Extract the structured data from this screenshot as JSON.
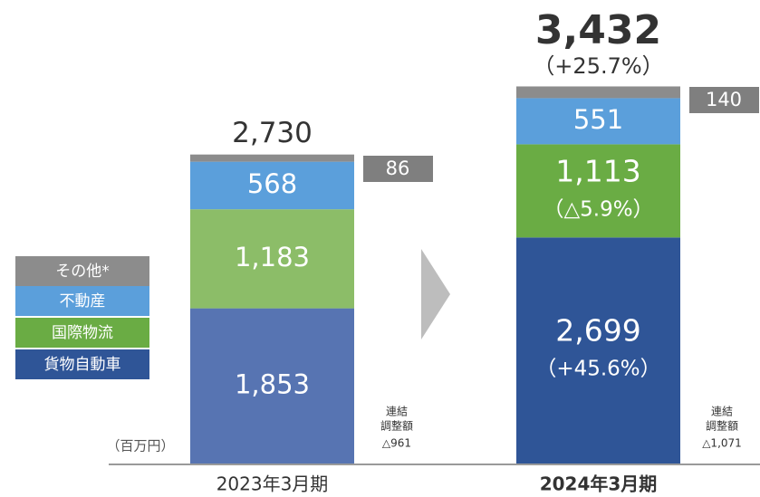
{
  "chart_data": {
    "type": "bar",
    "stacked": true,
    "categories": [
      "2023年3月期",
      "2024年3月期"
    ],
    "unit_label": "（百万円）",
    "series": [
      {
        "name": "貨物自動車",
        "color": [
          "#5774b2",
          "#2f5597"
        ],
        "values": [
          1853,
          2699
        ],
        "value_labels": [
          "1,853",
          "2,699"
        ],
        "change_labels": [
          null,
          "（+45.6%）"
        ]
      },
      {
        "name": "国際物流",
        "color": [
          "#8cbd68",
          "#6aac44"
        ],
        "values": [
          1183,
          1113
        ],
        "value_labels": [
          "1,183",
          "1,113"
        ],
        "change_labels": [
          null,
          "（△5.9%）"
        ]
      },
      {
        "name": "不動産",
        "color": [
          "#5b9fdb",
          "#5b9fdb"
        ],
        "values": [
          568,
          551
        ],
        "value_labels": [
          "568",
          "551"
        ],
        "change_labels": [
          null,
          null
        ]
      },
      {
        "name": "その他*",
        "color": [
          "#8c8c8c",
          "#8c8c8c"
        ],
        "values": [
          86,
          140
        ],
        "value_labels": [
          "86",
          "140"
        ],
        "change_labels": [
          null,
          null
        ]
      }
    ],
    "totals": {
      "values": [
        2730,
        3432
      ],
      "value_labels": [
        "2,730",
        "3,432"
      ],
      "change_labels": [
        null,
        "（+25.7%）"
      ]
    },
    "adjustments": {
      "label": [
        "連結",
        "調整額"
      ],
      "values": [
        -961,
        -1071
      ],
      "value_labels": [
        "△961",
        "△1,071"
      ]
    }
  }
}
